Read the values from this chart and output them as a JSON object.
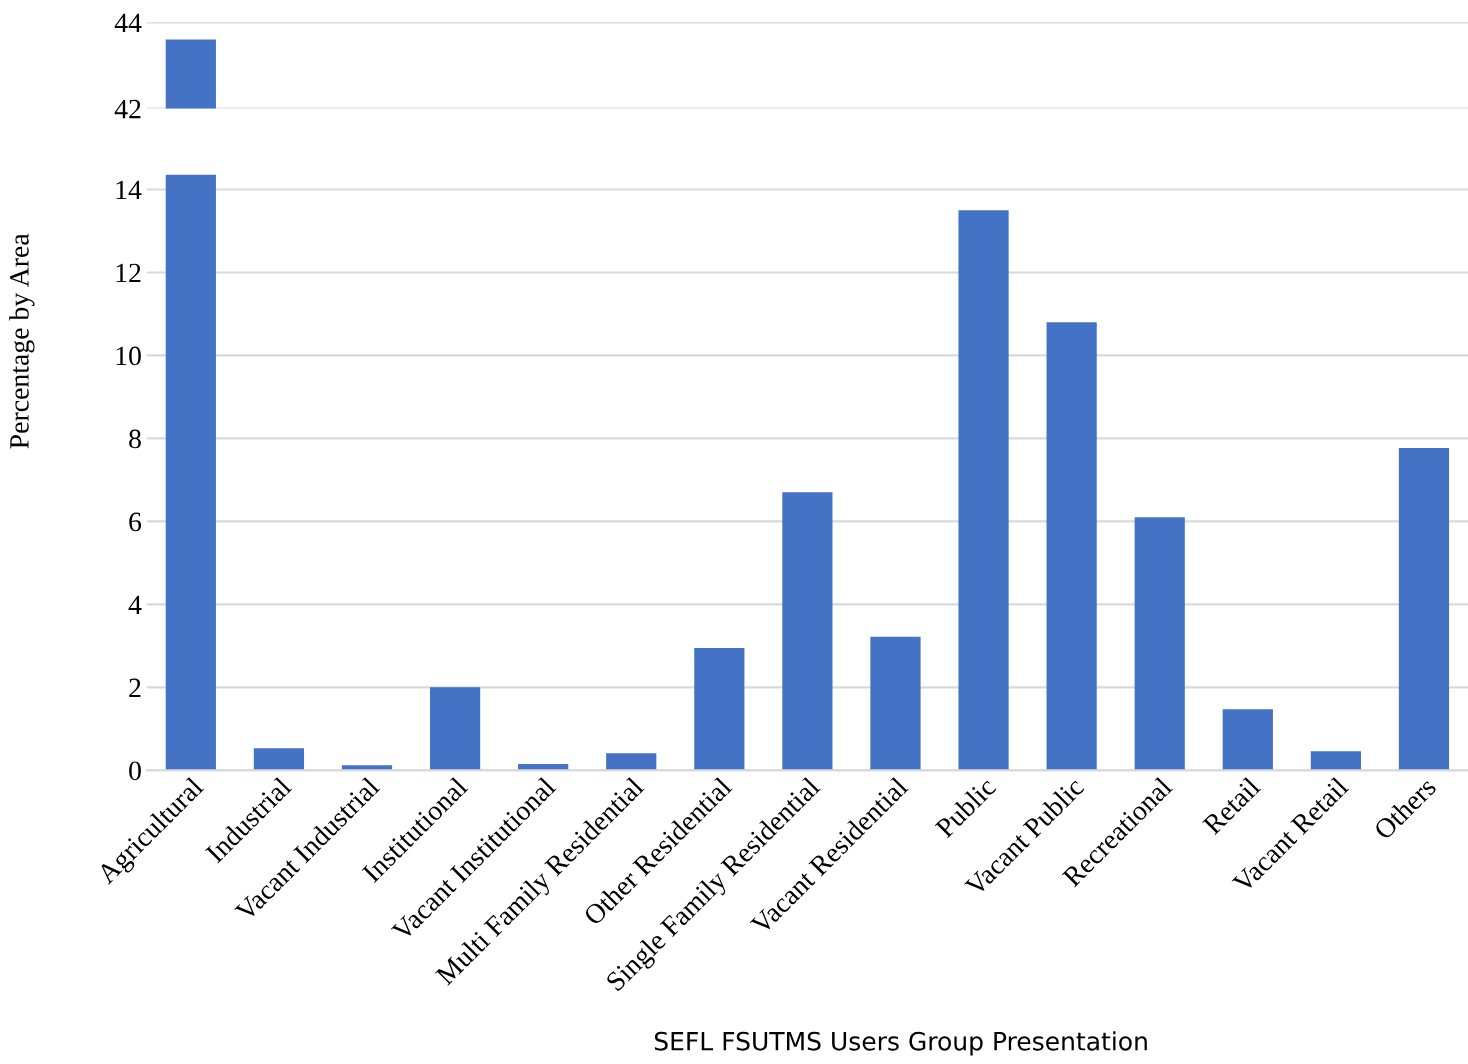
{
  "chart_data": [
    {
      "type": "bar",
      "categories": [
        null,
        null,
        null,
        null,
        null,
        null,
        null,
        null,
        null,
        null,
        null,
        null,
        null,
        null,
        null
      ],
      "values": [
        43.6,
        null,
        null,
        null,
        null,
        null,
        null,
        null,
        null,
        null,
        null,
        null,
        null,
        null,
        null
      ],
      "color": "#4472c4",
      "ylim": [
        42,
        44
      ],
      "yticks": [
        42,
        44
      ],
      "grid": "y",
      "tick_labels": "y"
    },
    {
      "type": "bar",
      "categories": [
        "Agricultural",
        "Industrial",
        "Vacant Industrial",
        "Institutional",
        "Vacant Institutional",
        "Multi Family Residential",
        "Other Residential",
        "Single Family Residential",
        "Vacant Residential",
        "Public",
        "Vacant Public",
        "Recreational",
        "Retail",
        "Vacant Retail",
        "Others"
      ],
      "values": [
        14.36,
        0.53,
        0.12,
        2.0,
        0.15,
        0.41,
        2.95,
        6.7,
        3.22,
        13.5,
        10.8,
        6.1,
        1.47,
        0.46,
        7.77
      ],
      "color": "#4472c4",
      "ylim": [
        0,
        14.36
      ],
      "yticks": [
        0,
        2,
        4,
        6,
        8,
        10,
        12,
        14
      ],
      "grid": "y",
      "ylabel": "Percentage by Area",
      "annotations": [
        "SEFL FSUTMS Users Group Presentation"
      ]
    }
  ]
}
